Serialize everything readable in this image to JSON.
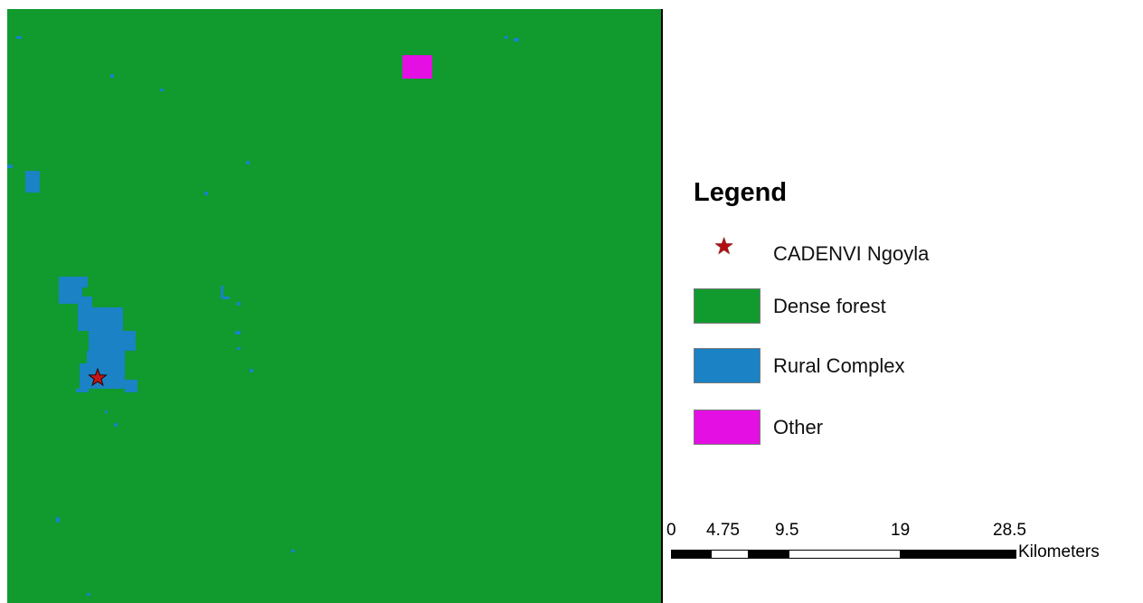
{
  "map": {
    "background_color": "#119a2e",
    "rural_color": "#1a82c5",
    "other_color": "#e30fe3",
    "marker_color": "#c41414"
  },
  "legend": {
    "title": "Legend",
    "items": [
      {
        "label": "CADENVI Ngoyla",
        "symbol": "star-icon",
        "color": "#c41414"
      },
      {
        "label": "Dense forest",
        "symbol": "swatch",
        "color": "#119a2e"
      },
      {
        "label": "Rural Complex",
        "symbol": "swatch",
        "color": "#1a82c5"
      },
      {
        "label": "Other",
        "symbol": "swatch",
        "color": "#e30fe3"
      }
    ]
  },
  "scalebar": {
    "ticks": [
      "0",
      "4.75",
      "9.5",
      "19",
      "28.5"
    ],
    "unit": "Kilometers"
  }
}
